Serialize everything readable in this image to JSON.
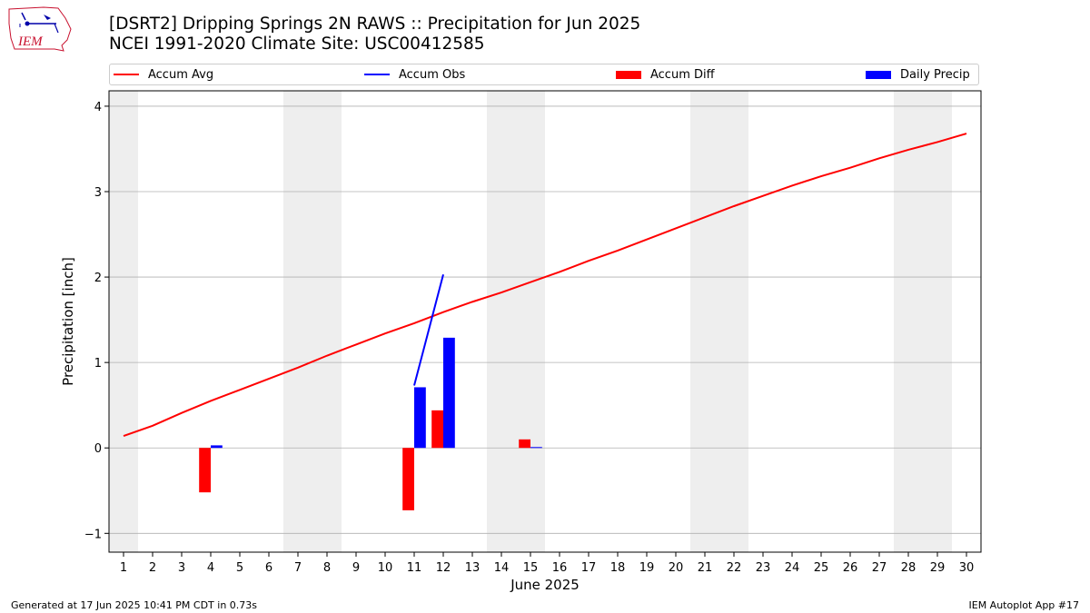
{
  "header": {
    "title_line1": "[DSRT2] Dripping Springs 2N RAWS :: Precipitation for Jun 2025",
    "title_line2": "NCEI 1991-2020 Climate Site: USC00412585",
    "logo_text": "IEM"
  },
  "footer": {
    "left": "Generated at 17 Jun 2025 10:41 PM CDT in 0.73s",
    "right": "IEM Autoplot App #17"
  },
  "colors": {
    "accum_avg": "#ff0000",
    "accum_obs": "#0000ff",
    "accum_diff": "#ff0000",
    "daily_precip": "#0000ff",
    "weekend_shade": "#eeeeee",
    "grid": "#b0b0b0"
  },
  "chart_data": {
    "type": "bar",
    "xlabel": "June 2025",
    "ylabel": "Precipitation [inch]",
    "xlim": [
      0.5,
      30.5
    ],
    "ylim": [
      -1.22,
      4.18
    ],
    "yticks": [
      -1,
      0,
      1,
      2,
      3,
      4
    ],
    "ytick_labels": [
      "−1",
      "0",
      "1",
      "2",
      "3",
      "4"
    ],
    "xticks": [
      1,
      2,
      3,
      4,
      5,
      6,
      7,
      8,
      9,
      10,
      11,
      12,
      13,
      14,
      15,
      16,
      17,
      18,
      19,
      20,
      21,
      22,
      23,
      24,
      25,
      26,
      27,
      28,
      29,
      30
    ],
    "grid": "horizontal",
    "legend_position": "top",
    "weekend_days": [
      1,
      7,
      8,
      14,
      15,
      21,
      22,
      28,
      29
    ],
    "legend": [
      "Accum Avg",
      "Accum Obs",
      "Accum Diff",
      "Daily Precip"
    ],
    "series": [
      {
        "name": "Accum Avg",
        "type": "line",
        "x": [
          1,
          2,
          3,
          4,
          5,
          6,
          7,
          8,
          9,
          10,
          11,
          12,
          13,
          14,
          15,
          16,
          17,
          18,
          19,
          20,
          21,
          22,
          23,
          24,
          25,
          26,
          27,
          28,
          29,
          30
        ],
        "values": [
          0.14,
          0.26,
          0.41,
          0.55,
          0.68,
          0.81,
          0.94,
          1.08,
          1.21,
          1.34,
          1.46,
          1.59,
          1.71,
          1.82,
          1.94,
          2.06,
          2.19,
          2.31,
          2.44,
          2.57,
          2.7,
          2.83,
          2.95,
          3.07,
          3.18,
          3.28,
          3.39,
          3.49,
          3.58,
          3.68
        ]
      },
      {
        "name": "Accum Obs",
        "type": "line",
        "x": [
          11,
          12
        ],
        "values": [
          0.73,
          2.03
        ]
      },
      {
        "name": "Accum Diff",
        "type": "bar",
        "x": [
          4,
          11,
          12,
          15
        ],
        "values": [
          -0.52,
          -0.73,
          0.44,
          0.1
        ]
      },
      {
        "name": "Daily Precip",
        "type": "bar",
        "x": [
          4,
          11,
          12,
          15
        ],
        "values": [
          0.03,
          0.71,
          1.29,
          0.01
        ]
      }
    ]
  }
}
